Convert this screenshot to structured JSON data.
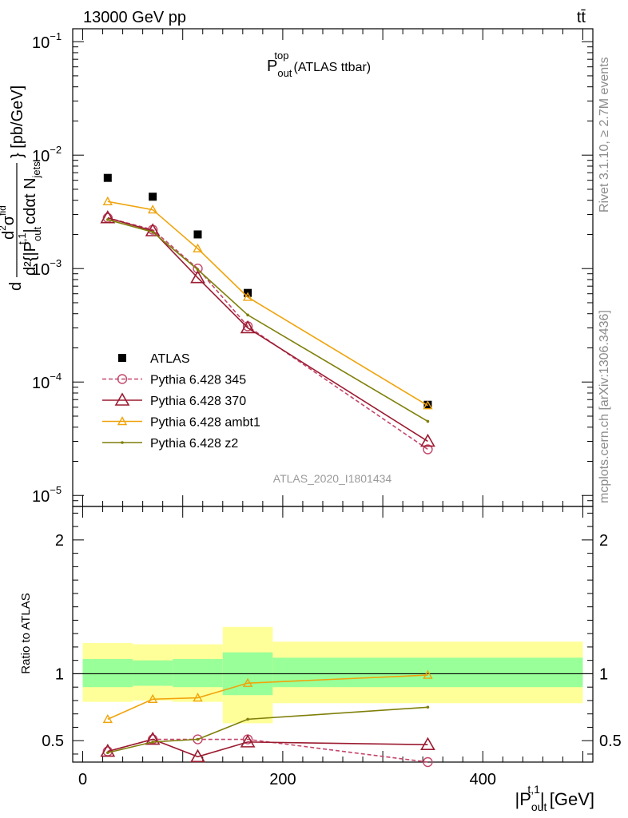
{
  "header": {
    "left": "13000 GeV pp",
    "right": "tt̄"
  },
  "side_text": {
    "rivet": "Rivet 3.1.10, ≥ 2.7M events",
    "mcplots": "mcplots.cern.ch [arXiv:1306.3436]"
  },
  "watermark": "ATLAS_2020_I1801434",
  "colors": {
    "atlas": "#000000",
    "p345": "#c4466a",
    "p370": "#9b1b30",
    "ambt1": "#f0a30a",
    "z2": "#7f7f0a",
    "band_inner": "#99ff99",
    "band_outer": "#ffff99"
  },
  "chart_data": [
    {
      "type": "scatter",
      "title": "P_out^top (ATLAS ttbar)",
      "title_parts": {
        "main": "P",
        "sup": "top",
        "sub": "out",
        "tail": "(ATLAS ttbar)"
      },
      "ylabel": "d^2σ^fid / d^2{|P_out^t,1| cdαt N_jets} [pb/GeV]",
      "ylabel_parts": {
        "num": "d",
        "num_main": "σ",
        "num_sup": "fid",
        "den": "d²{|P",
        "den_sub": "out",
        "den_sup": "t,1",
        "den_mid": "| cdαt N",
        "den_sub2": "jets",
        "tail": "} [pb/GeV]"
      },
      "yscale": "log",
      "ylim": [
        8e-06,
        0.13
      ],
      "xlim": [
        -10,
        510
      ],
      "y_ticks": [
        {
          "value": 0.1,
          "base": "10",
          "exp": "−1"
        },
        {
          "value": 0.01,
          "base": "10",
          "exp": "−2"
        },
        {
          "value": 0.001,
          "base": "10",
          "exp": "−3"
        },
        {
          "value": 0.0001,
          "base": "10",
          "exp": "−4"
        },
        {
          "value": 1e-05,
          "base": "10",
          "exp": "−5"
        }
      ],
      "legend_position": "bottom-left",
      "series": [
        {
          "name": "ATLAS",
          "marker": "square",
          "line": "none",
          "x": [
            25,
            70,
            115,
            165,
            345
          ],
          "y": [
            0.0063,
            0.0043,
            0.002,
            0.00061,
            6.3e-05
          ]
        },
        {
          "name": "Pythia 6.428 345",
          "marker": "circle",
          "line": "dashed",
          "x": [
            25,
            70,
            115,
            165,
            345
          ],
          "y": [
            0.0028,
            0.0022,
            0.001,
            0.00031,
            2.55e-05
          ]
        },
        {
          "name": "Pythia 6.428 370",
          "marker": "triangle",
          "line": "solid",
          "x": [
            25,
            70,
            115,
            165,
            345
          ],
          "y": [
            0.0028,
            0.00215,
            0.00083,
            0.0003,
            3e-05
          ]
        },
        {
          "name": "Pythia 6.428 ambt1",
          "marker": "triangle-small",
          "line": "solid",
          "x": [
            25,
            70,
            115,
            165,
            345
          ],
          "y": [
            0.0039,
            0.0033,
            0.0015,
            0.00056,
            6.2e-05
          ]
        },
        {
          "name": "Pythia 6.428 z2",
          "marker": "dot",
          "line": "solid",
          "x": [
            25,
            70,
            115,
            165,
            345
          ],
          "y": [
            0.0027,
            0.0021,
            0.00098,
            0.00039,
            4.5e-05
          ]
        }
      ]
    },
    {
      "type": "line",
      "title": "",
      "ylabel": "Ratio to ATLAS",
      "xlabel": "|P_out^t,1| [GeV]",
      "xlabel_parts": {
        "main": "|P",
        "sub": "out",
        "sup": "t,1",
        "tail": "| [GeV]"
      },
      "xlim": [
        -10,
        510
      ],
      "ylim": [
        0.34,
        2.25
      ],
      "x_ticks": [
        0,
        200,
        400
      ],
      "y_ticks": [
        0.5,
        1,
        2
      ],
      "reference_line": 1,
      "bands": [
        {
          "x0": 0,
          "x1": 50,
          "inner": [
            0.9,
            1.11
          ],
          "outer": [
            0.79,
            1.23
          ]
        },
        {
          "x0": 50,
          "x1": 90,
          "inner": [
            0.91,
            1.1
          ],
          "outer": [
            0.8,
            1.22
          ]
        },
        {
          "x0": 90,
          "x1": 140,
          "inner": [
            0.9,
            1.11
          ],
          "outer": [
            0.79,
            1.22
          ]
        },
        {
          "x0": 140,
          "x1": 190,
          "inner": [
            0.84,
            1.16
          ],
          "outer": [
            0.63,
            1.35
          ]
        },
        {
          "x0": 190,
          "x1": 500,
          "inner": [
            0.9,
            1.12
          ],
          "outer": [
            0.78,
            1.24
          ]
        }
      ],
      "series": [
        {
          "name": "Pythia 6.428 345",
          "marker": "circle",
          "line": "dashed",
          "x": [
            25,
            70,
            115,
            165,
            345
          ],
          "y": [
            0.42,
            0.51,
            0.51,
            0.51,
            0.34
          ]
        },
        {
          "name": "Pythia 6.428 370",
          "marker": "triangle",
          "line": "solid",
          "x": [
            25,
            70,
            115,
            165,
            345
          ],
          "y": [
            0.42,
            0.51,
            0.38,
            0.49,
            0.47
          ]
        },
        {
          "name": "Pythia 6.428 ambt1",
          "marker": "triangle-small",
          "line": "solid",
          "x": [
            25,
            70,
            115,
            165,
            345
          ],
          "y": [
            0.66,
            0.81,
            0.82,
            0.93,
            0.99
          ]
        },
        {
          "name": "Pythia 6.428 z2",
          "marker": "dot",
          "line": "solid",
          "x": [
            25,
            70,
            115,
            165,
            345
          ],
          "y": [
            0.41,
            0.49,
            0.51,
            0.66,
            0.75
          ]
        }
      ]
    }
  ]
}
